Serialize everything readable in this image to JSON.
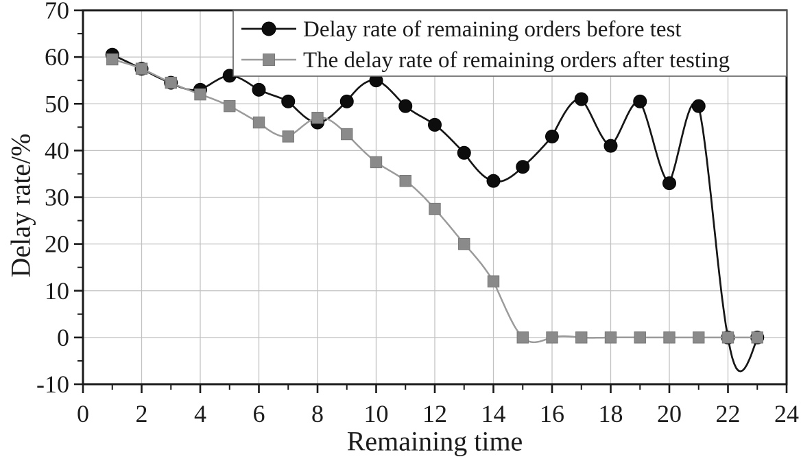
{
  "figure": {
    "kind": "scientific line chart",
    "background": "#ffffff"
  },
  "chart_data": {
    "type": "line",
    "title": "",
    "xlabel": "Remaining time",
    "ylabel": "Delay rate/%",
    "xlim": [
      0,
      24
    ],
    "ylim": [
      -10,
      70
    ],
    "x_major_tick_step": 2,
    "x_minor_tick_step": 1,
    "y_major_tick_step": 10,
    "y_minor_tick_step": 5,
    "x_tick_labels": [
      "0",
      "2",
      "4",
      "6",
      "8",
      "10",
      "12",
      "14",
      "16",
      "18",
      "20",
      "22",
      "24"
    ],
    "y_tick_labels": [
      "-10",
      "0",
      "10",
      "20",
      "30",
      "40",
      "50",
      "60",
      "70"
    ],
    "grid": true,
    "line_style": "spline",
    "legend_position": "top-inside",
    "x": [
      1,
      2,
      3,
      4,
      5,
      6,
      7,
      8,
      9,
      10,
      11,
      12,
      13,
      14,
      15,
      16,
      17,
      18,
      19,
      20,
      21,
      22,
      23
    ],
    "series": [
      {
        "name": "Delay rate of remaining orders before test",
        "marker": "circle",
        "line_color": "#161616",
        "marker_color": "#0d0d0d",
        "marker_edge": "#000000",
        "values": [
          60.5,
          57.5,
          54.5,
          53,
          56,
          53,
          50.5,
          46,
          50.5,
          55,
          49.5,
          45.5,
          39.5,
          33.5,
          36.5,
          43,
          51,
          41,
          50.5,
          33,
          49.5,
          0,
          0
        ]
      },
      {
        "name": "The delay rate of remaining orders after testing",
        "marker": "square",
        "line_color": "#9b9b9b",
        "marker_color": "#8a8a8a",
        "marker_edge": "#787878",
        "values": [
          59.5,
          57.5,
          54.5,
          52,
          49.5,
          46,
          43,
          47,
          43.5,
          37.5,
          33.5,
          27.5,
          20,
          12,
          0,
          0,
          0,
          0,
          0,
          0,
          0,
          0,
          0
        ]
      }
    ]
  },
  "colors": {
    "plot_background": "#ffffff",
    "grid": "#c2c2c2",
    "axis": "#1a1a1a",
    "text": "#1c1c1c",
    "legend_border": "#5f5f5f",
    "legend_background": "#ffffff"
  }
}
